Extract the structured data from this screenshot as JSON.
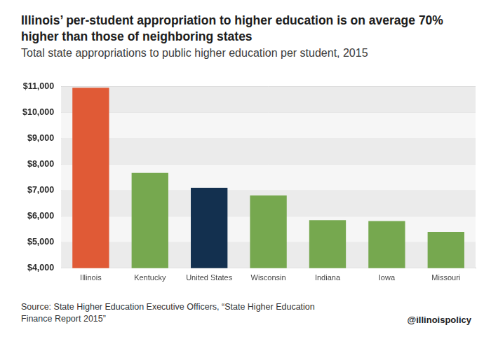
{
  "chart_data": {
    "type": "bar",
    "title": "Illinois’ per-student appropriation to higher education is on average 70% higher than those of neighboring states",
    "subtitle": "Total state appropriations to public higher education per student, 2015",
    "source": "Source: State Higher Education Executive Officers, “State Higher Education Finance Report 2015”",
    "credit": "@illinoispolicy",
    "categories": [
      "Illinois",
      "Kentucky",
      "United States",
      "Wisconsin",
      "Indiana",
      "Iowa",
      "Missouri"
    ],
    "values": [
      10950,
      7670,
      7100,
      6800,
      5850,
      5820,
      5400
    ],
    "colors": [
      "#e05a36",
      "#76a84f",
      "#13304f",
      "#76a84f",
      "#76a84f",
      "#76a84f",
      "#76a84f"
    ],
    "ylim": [
      4000,
      11000
    ],
    "yticks": [
      {
        "value": 4000,
        "label": "$4,000"
      },
      {
        "value": 5000,
        "label": "$5,000"
      },
      {
        "value": 6000,
        "label": "$6,000"
      },
      {
        "value": 7000,
        "label": "$7,000"
      },
      {
        "value": 8000,
        "label": "$8,000"
      },
      {
        "value": 9000,
        "label": "$9,000"
      },
      {
        "value": 10000,
        "label": "$10,000"
      },
      {
        "value": 11000,
        "label": "$11,000"
      }
    ],
    "grid": true,
    "data_labels": false
  }
}
